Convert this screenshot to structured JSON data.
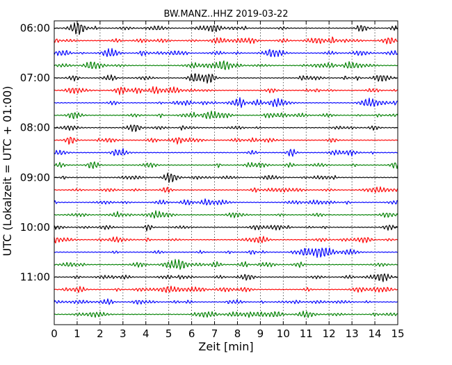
{
  "chart_data": {
    "type": "line",
    "title": "BW.MANZ..HHZ 2019-03-22",
    "xlabel": "Zeit  [min]",
    "ylabel": "UTC (Lokalzeit = UTC + 01:00)",
    "xlim": [
      0,
      15
    ],
    "x_ticks": [
      "0",
      "1",
      "2",
      "3",
      "4",
      "5",
      "6",
      "7",
      "8",
      "9",
      "10",
      "11",
      "12",
      "13",
      "14",
      "15"
    ],
    "hour_labels": [
      "06:00",
      "07:00",
      "08:00",
      "09:00",
      "10:00",
      "11:00"
    ],
    "minutes_per_trace": 15,
    "traces_per_hour": 4,
    "trace_count": 24,
    "colors": [
      "#000000",
      "#ff0000",
      "#0000ff",
      "#008000"
    ],
    "grid": "vertical dotted lines at each minute"
  }
}
